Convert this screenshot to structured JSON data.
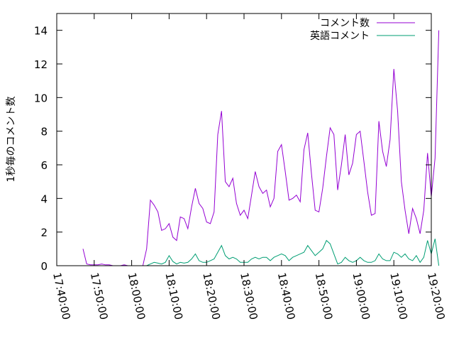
{
  "chart_data": {
    "type": "line",
    "title": "",
    "xlabel": "",
    "ylabel": "1秒毎のコメント数",
    "x_ticks": [
      "17:40:00",
      "17:50:00",
      "18:00:00",
      "18:10:00",
      "18:20:00",
      "18:30:00",
      "18:40:00",
      "18:50:00",
      "19:00:00",
      "19:10:00",
      "19:20:00"
    ],
    "xlim": [
      "17:40:00",
      "19:20:00"
    ],
    "ylim": [
      0,
      15
    ],
    "y_ticks": [
      0,
      2,
      4,
      6,
      8,
      10,
      12,
      14
    ],
    "grid": false,
    "legend_position": "top-right",
    "series": [
      {
        "name": "コメント数",
        "color": "#9400d3",
        "points": [
          [
            "17:47:00",
            1.0
          ],
          [
            "17:48:00",
            0.1
          ],
          [
            "17:49:00",
            0.05
          ],
          [
            "17:50:00",
            0.05
          ],
          [
            "17:51:00",
            0.05
          ],
          [
            "17:52:00",
            0.1
          ],
          [
            "17:53:00",
            0.05
          ],
          [
            "17:54:00",
            0.05
          ],
          [
            "17:55:00",
            0.0
          ],
          [
            "17:57:00",
            0.0
          ],
          [
            "17:58:00",
            0.05
          ],
          [
            "17:59:00",
            0.0
          ],
          [
            "18:01:00",
            0.0
          ],
          [
            "18:02:00",
            0.0
          ],
          [
            "18:03:00",
            0.0
          ],
          [
            "18:04:00",
            1.0
          ],
          [
            "18:05:00",
            3.9
          ],
          [
            "18:06:00",
            3.6
          ],
          [
            "18:07:00",
            3.2
          ],
          [
            "18:08:00",
            2.1
          ],
          [
            "18:09:00",
            2.2
          ],
          [
            "18:10:00",
            2.5
          ],
          [
            "18:11:00",
            1.7
          ],
          [
            "18:12:00",
            1.5
          ],
          [
            "18:13:00",
            2.9
          ],
          [
            "18:14:00",
            2.8
          ],
          [
            "18:15:00",
            2.2
          ],
          [
            "18:16:00",
            3.5
          ],
          [
            "18:17:00",
            4.6
          ],
          [
            "18:18:00",
            3.7
          ],
          [
            "18:19:00",
            3.4
          ],
          [
            "18:20:00",
            2.6
          ],
          [
            "18:21:00",
            2.5
          ],
          [
            "18:22:00",
            3.2
          ],
          [
            "18:23:00",
            7.8
          ],
          [
            "18:24:00",
            9.2
          ],
          [
            "18:25:00",
            5.0
          ],
          [
            "18:26:00",
            4.7
          ],
          [
            "18:27:00",
            5.2
          ],
          [
            "18:28:00",
            3.7
          ],
          [
            "18:29:00",
            3.0
          ],
          [
            "18:30:00",
            3.3
          ],
          [
            "18:31:00",
            2.8
          ],
          [
            "18:32:00",
            4.2
          ],
          [
            "18:33:00",
            5.6
          ],
          [
            "18:34:00",
            4.7
          ],
          [
            "18:35:00",
            4.3
          ],
          [
            "18:36:00",
            4.5
          ],
          [
            "18:37:00",
            3.5
          ],
          [
            "18:38:00",
            4.0
          ],
          [
            "18:39:00",
            6.8
          ],
          [
            "18:40:00",
            7.2
          ],
          [
            "18:41:00",
            5.6
          ],
          [
            "18:42:00",
            3.9
          ],
          [
            "18:43:00",
            4.0
          ],
          [
            "18:44:00",
            4.2
          ],
          [
            "18:45:00",
            3.8
          ],
          [
            "18:46:00",
            6.9
          ],
          [
            "18:47:00",
            7.9
          ],
          [
            "18:48:00",
            5.5
          ],
          [
            "18:49:00",
            3.3
          ],
          [
            "18:50:00",
            3.2
          ],
          [
            "18:51:00",
            4.6
          ],
          [
            "18:52:00",
            6.5
          ],
          [
            "18:53:00",
            8.2
          ],
          [
            "18:54:00",
            7.8
          ],
          [
            "18:55:00",
            4.5
          ],
          [
            "18:56:00",
            6.0
          ],
          [
            "18:57:00",
            7.8
          ],
          [
            "18:58:00",
            5.4
          ],
          [
            "18:59:00",
            6.1
          ],
          [
            "19:00:00",
            7.8
          ],
          [
            "19:01:00",
            8.0
          ],
          [
            "19:02:00",
            6.2
          ],
          [
            "19:03:00",
            4.4
          ],
          [
            "19:04:00",
            3.0
          ],
          [
            "19:05:00",
            3.1
          ],
          [
            "19:06:00",
            8.6
          ],
          [
            "19:07:00",
            6.8
          ],
          [
            "19:08:00",
            5.9
          ],
          [
            "19:09:00",
            7.5
          ],
          [
            "19:10:00",
            11.7
          ],
          [
            "19:11:00",
            9.2
          ],
          [
            "19:12:00",
            5.0
          ],
          [
            "19:13:00",
            3.3
          ],
          [
            "19:14:00",
            1.9
          ],
          [
            "19:15:00",
            3.4
          ],
          [
            "19:16:00",
            2.8
          ],
          [
            "19:17:00",
            1.9
          ],
          [
            "19:18:00",
            3.3
          ],
          [
            "19:19:00",
            6.7
          ],
          [
            "19:20:00",
            4.1
          ],
          [
            "19:21:00",
            6.4
          ],
          [
            "19:22:00",
            14.0
          ]
        ]
      },
      {
        "name": "英語コメント",
        "color": "#009e73",
        "points": [
          [
            "18:04:00",
            0.0
          ],
          [
            "18:05:00",
            0.1
          ],
          [
            "18:06:00",
            0.2
          ],
          [
            "18:07:00",
            0.15
          ],
          [
            "18:08:00",
            0.1
          ],
          [
            "18:09:00",
            0.2
          ],
          [
            "18:10:00",
            0.6
          ],
          [
            "18:11:00",
            0.25
          ],
          [
            "18:12:00",
            0.1
          ],
          [
            "18:13:00",
            0.2
          ],
          [
            "18:14:00",
            0.15
          ],
          [
            "18:15:00",
            0.2
          ],
          [
            "18:16:00",
            0.4
          ],
          [
            "18:17:00",
            0.7
          ],
          [
            "18:18:00",
            0.3
          ],
          [
            "18:19:00",
            0.2
          ],
          [
            "18:20:00",
            0.2
          ],
          [
            "18:21:00",
            0.3
          ],
          [
            "18:22:00",
            0.4
          ],
          [
            "18:23:00",
            0.8
          ],
          [
            "18:24:00",
            1.2
          ],
          [
            "18:25:00",
            0.6
          ],
          [
            "18:26:00",
            0.4
          ],
          [
            "18:27:00",
            0.5
          ],
          [
            "18:28:00",
            0.4
          ],
          [
            "18:29:00",
            0.2
          ],
          [
            "18:30:00",
            0.2
          ],
          [
            "18:31:00",
            0.2
          ],
          [
            "18:32:00",
            0.4
          ],
          [
            "18:33:00",
            0.5
          ],
          [
            "18:34:00",
            0.4
          ],
          [
            "18:35:00",
            0.5
          ],
          [
            "18:36:00",
            0.5
          ],
          [
            "18:37:00",
            0.3
          ],
          [
            "18:38:00",
            0.5
          ],
          [
            "18:39:00",
            0.6
          ],
          [
            "18:40:00",
            0.7
          ],
          [
            "18:41:00",
            0.6
          ],
          [
            "18:42:00",
            0.3
          ],
          [
            "18:43:00",
            0.5
          ],
          [
            "18:44:00",
            0.6
          ],
          [
            "18:45:00",
            0.7
          ],
          [
            "18:46:00",
            0.8
          ],
          [
            "18:47:00",
            1.2
          ],
          [
            "18:48:00",
            0.9
          ],
          [
            "18:49:00",
            0.6
          ],
          [
            "18:50:00",
            0.8
          ],
          [
            "18:51:00",
            1.0
          ],
          [
            "18:52:00",
            1.5
          ],
          [
            "18:53:00",
            1.3
          ],
          [
            "18:54:00",
            0.7
          ],
          [
            "18:55:00",
            0.1
          ],
          [
            "18:56:00",
            0.2
          ],
          [
            "18:57:00",
            0.5
          ],
          [
            "18:58:00",
            0.3
          ],
          [
            "18:59:00",
            0.2
          ],
          [
            "19:00:00",
            0.3
          ],
          [
            "19:01:00",
            0.5
          ],
          [
            "19:02:00",
            0.3
          ],
          [
            "19:03:00",
            0.2
          ],
          [
            "19:04:00",
            0.2
          ],
          [
            "19:05:00",
            0.3
          ],
          [
            "19:06:00",
            0.7
          ],
          [
            "19:07:00",
            0.4
          ],
          [
            "19:08:00",
            0.3
          ],
          [
            "19:09:00",
            0.3
          ],
          [
            "19:10:00",
            0.8
          ],
          [
            "19:11:00",
            0.7
          ],
          [
            "19:12:00",
            0.5
          ],
          [
            "19:13:00",
            0.7
          ],
          [
            "19:14:00",
            0.4
          ],
          [
            "19:15:00",
            0.3
          ],
          [
            "19:16:00",
            0.6
          ],
          [
            "19:17:00",
            0.2
          ],
          [
            "19:18:00",
            0.5
          ],
          [
            "19:19:00",
            1.5
          ],
          [
            "19:20:00",
            0.7
          ],
          [
            "19:21:00",
            1.6
          ],
          [
            "19:22:00",
            0.0
          ]
        ]
      }
    ]
  }
}
